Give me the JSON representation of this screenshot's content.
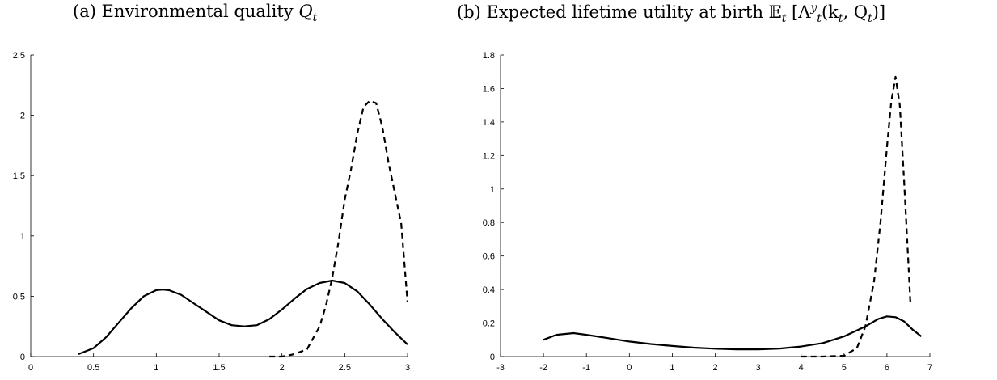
{
  "charts": [
    {
      "title_label": "(a) Environmental quality",
      "title_symbol": "Q",
      "title_subscript": "t"
    },
    {
      "title_label": "(b) Expected lifetime utility at birth",
      "title_expectation": "𝔼",
      "title_expectation_sub": "t",
      "title_open": " [Λ",
      "title_lambda_sup": "y",
      "title_lambda_sub": "t",
      "title_args_open": "(k",
      "title_args_k_sub": "t",
      "title_args_sep": ", Q",
      "title_args_q_sub": "t",
      "title_close": ")]"
    }
  ],
  "chart_data": [
    {
      "type": "line",
      "title": "(a) Environmental quality Q_t",
      "xlim": [
        0,
        3
      ],
      "ylim": [
        0,
        2.5
      ],
      "xticks": [
        "0",
        "0.5",
        "1",
        "1.5",
        "2",
        "2.5",
        "3"
      ],
      "yticks": [
        "0",
        "0.5",
        "1",
        "1.5",
        "2",
        "2.5"
      ],
      "grid": false,
      "series": [
        {
          "style": "solid",
          "x": [
            0.38,
            0.5,
            0.6,
            0.7,
            0.8,
            0.9,
            1.0,
            1.05,
            1.1,
            1.2,
            1.3,
            1.4,
            1.5,
            1.6,
            1.7,
            1.8,
            1.9,
            2.0,
            2.1,
            2.2,
            2.3,
            2.4,
            2.5,
            2.6,
            2.7,
            2.8,
            2.9,
            3.0
          ],
          "y": [
            0.02,
            0.07,
            0.16,
            0.28,
            0.4,
            0.5,
            0.55,
            0.555,
            0.55,
            0.51,
            0.44,
            0.37,
            0.3,
            0.26,
            0.25,
            0.26,
            0.31,
            0.39,
            0.48,
            0.56,
            0.61,
            0.63,
            0.61,
            0.54,
            0.43,
            0.31,
            0.2,
            0.1
          ]
        },
        {
          "style": "dashed",
          "x": [
            1.9,
            2.0,
            2.1,
            2.2,
            2.3,
            2.35,
            2.4,
            2.45,
            2.5,
            2.55,
            2.6,
            2.65,
            2.7,
            2.75,
            2.8,
            2.85,
            2.9,
            2.95,
            3.0
          ],
          "y": [
            0.0,
            0.0,
            0.02,
            0.06,
            0.25,
            0.42,
            0.65,
            0.95,
            1.3,
            1.55,
            1.85,
            2.07,
            2.12,
            2.1,
            1.9,
            1.6,
            1.35,
            1.1,
            0.45
          ]
        }
      ]
    },
    {
      "type": "line",
      "title": "(b) Expected lifetime utility at birth E_t[Λ^y_t(k_t, Q_t)]",
      "xlim": [
        -3,
        7
      ],
      "ylim": [
        0,
        1.8
      ],
      "xticks": [
        "-3",
        "-2",
        "-1",
        "0",
        "1",
        "2",
        "3",
        "4",
        "5",
        "6",
        "7"
      ],
      "yticks": [
        "0",
        "0.2",
        "0.4",
        "0.6",
        "0.8",
        "1",
        "1.2",
        "1.4",
        "1.6",
        "1.8"
      ],
      "grid": false,
      "series": [
        {
          "style": "solid",
          "x": [
            -2.0,
            -1.7,
            -1.3,
            -1.0,
            -0.5,
            0.0,
            0.5,
            1.0,
            1.5,
            2.0,
            2.5,
            3.0,
            3.5,
            4.0,
            4.5,
            5.0,
            5.5,
            5.8,
            6.0,
            6.2,
            6.4,
            6.6,
            6.8
          ],
          "y": [
            0.1,
            0.13,
            0.14,
            0.13,
            0.11,
            0.09,
            0.075,
            0.063,
            0.053,
            0.047,
            0.043,
            0.043,
            0.048,
            0.06,
            0.08,
            0.12,
            0.18,
            0.225,
            0.24,
            0.235,
            0.21,
            0.16,
            0.12
          ]
        },
        {
          "style": "dashed",
          "x": [
            4.0,
            4.5,
            5.0,
            5.3,
            5.5,
            5.7,
            5.85,
            6.0,
            6.1,
            6.2,
            6.3,
            6.4,
            6.5,
            6.55
          ],
          "y": [
            0.0,
            0.0,
            0.005,
            0.05,
            0.18,
            0.45,
            0.8,
            1.25,
            1.52,
            1.67,
            1.5,
            1.05,
            0.55,
            0.3
          ]
        }
      ]
    }
  ]
}
